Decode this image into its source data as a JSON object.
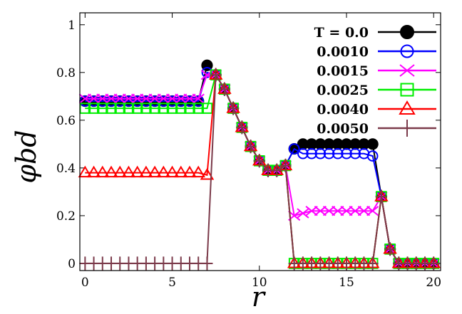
{
  "chart_data": {
    "type": "line",
    "xlabel": "r",
    "ylabel": "φbd",
    "xlim": [
      -0.3,
      20.4
    ],
    "ylim": [
      -0.03,
      1.05
    ],
    "xticks": [
      0,
      5,
      10,
      15,
      20
    ],
    "yticks": [
      0,
      0.2,
      0.4,
      0.6,
      0.8,
      1
    ],
    "ytick_labels": [
      "0",
      "0.2",
      "0.4",
      "0.6",
      "0.8",
      "1"
    ],
    "legend_position": "top-right",
    "series": [
      {
        "name": "T = 0.0",
        "color": "#000000",
        "marker": "filled-circle",
        "x": [
          0,
          0.5,
          1,
          1.5,
          2,
          2.5,
          3,
          3.5,
          4,
          4.5,
          5,
          5.5,
          6,
          6.5,
          7,
          7.5,
          8,
          8.5,
          9,
          9.5,
          10,
          10.5,
          11,
          11.5,
          12,
          12.5,
          13,
          13.5,
          14,
          14.5,
          15,
          15.5,
          16,
          16.5,
          17,
          17.5,
          18,
          18.5,
          19,
          19.5,
          20
        ],
        "y": [
          0.68,
          0.68,
          0.68,
          0.68,
          0.68,
          0.68,
          0.68,
          0.68,
          0.68,
          0.68,
          0.68,
          0.68,
          0.68,
          0.68,
          0.83,
          0.79,
          0.73,
          0.65,
          0.57,
          0.49,
          0.43,
          0.39,
          0.39,
          0.41,
          0.48,
          0.5,
          0.5,
          0.5,
          0.5,
          0.5,
          0.5,
          0.5,
          0.5,
          0.5,
          0.28,
          0.06,
          0,
          0,
          0,
          0,
          0
        ]
      },
      {
        "name": "0.0010",
        "color": "#0000ff",
        "marker": "open-circle",
        "x": [
          0,
          0.5,
          1,
          1.5,
          2,
          2.5,
          3,
          3.5,
          4,
          4.5,
          5,
          5.5,
          6,
          6.5,
          7,
          7.5,
          8,
          8.5,
          9,
          9.5,
          10,
          10.5,
          11,
          11.5,
          12,
          12.5,
          13,
          13.5,
          14,
          14.5,
          15,
          15.5,
          16,
          16.5,
          17,
          17.5,
          18,
          18.5,
          19,
          19.5,
          20
        ],
        "y": [
          0.68,
          0.68,
          0.68,
          0.68,
          0.68,
          0.68,
          0.68,
          0.68,
          0.68,
          0.68,
          0.68,
          0.68,
          0.68,
          0.68,
          0.8,
          0.79,
          0.73,
          0.65,
          0.57,
          0.49,
          0.43,
          0.39,
          0.39,
          0.41,
          0.48,
          0.46,
          0.46,
          0.46,
          0.46,
          0.46,
          0.46,
          0.46,
          0.46,
          0.45,
          0.28,
          0.06,
          0,
          0,
          0,
          0,
          0
        ]
      },
      {
        "name": "0.0015",
        "color": "#ff00ff",
        "marker": "x-cross",
        "x": [
          0,
          0.5,
          1,
          1.5,
          2,
          2.5,
          3,
          3.5,
          4,
          4.5,
          5,
          5.5,
          6,
          6.5,
          7,
          7.5,
          8,
          8.5,
          9,
          9.5,
          10,
          10.5,
          11,
          11.5,
          12,
          12.5,
          13,
          13.5,
          14,
          14.5,
          15,
          15.5,
          16,
          16.5,
          17,
          17.5,
          18,
          18.5,
          19,
          19.5,
          20
        ],
        "y": [
          0.69,
          0.69,
          0.69,
          0.69,
          0.69,
          0.69,
          0.69,
          0.69,
          0.69,
          0.69,
          0.69,
          0.69,
          0.69,
          0.69,
          0.79,
          0.79,
          0.73,
          0.65,
          0.57,
          0.49,
          0.43,
          0.39,
          0.39,
          0.41,
          0.2,
          0.21,
          0.22,
          0.22,
          0.22,
          0.22,
          0.22,
          0.22,
          0.22,
          0.22,
          0.28,
          0.06,
          0,
          0,
          0,
          0,
          0
        ]
      },
      {
        "name": "0.0025",
        "color": "#00ee00",
        "marker": "open-square",
        "x": [
          0,
          0.5,
          1,
          1.5,
          2,
          2.5,
          3,
          3.5,
          4,
          4.5,
          5,
          5.5,
          6,
          6.5,
          7,
          7.5,
          8,
          8.5,
          9,
          9.5,
          10,
          10.5,
          11,
          11.5,
          12,
          12.5,
          13,
          13.5,
          14,
          14.5,
          15,
          15.5,
          16,
          16.5,
          17,
          17.5,
          18,
          18.5,
          19,
          19.5,
          20
        ],
        "y": [
          0.65,
          0.65,
          0.65,
          0.65,
          0.65,
          0.65,
          0.65,
          0.65,
          0.65,
          0.65,
          0.65,
          0.65,
          0.65,
          0.65,
          0.65,
          0.79,
          0.73,
          0.65,
          0.57,
          0.49,
          0.43,
          0.39,
          0.39,
          0.41,
          0,
          0,
          0,
          0,
          0,
          0,
          0,
          0,
          0,
          0,
          0.28,
          0.06,
          0,
          0,
          0,
          0,
          0
        ]
      },
      {
        "name": "0.0040",
        "color": "#ff0000",
        "marker": "open-triangle",
        "x": [
          0,
          0.5,
          1,
          1.5,
          2,
          2.5,
          3,
          3.5,
          4,
          4.5,
          5,
          5.5,
          6,
          6.5,
          7,
          7.5,
          8,
          8.5,
          9,
          9.5,
          10,
          10.5,
          11,
          11.5,
          12,
          12.5,
          13,
          13.5,
          14,
          14.5,
          15,
          15.5,
          16,
          16.5,
          17,
          17.5,
          18,
          18.5,
          19,
          19.5,
          20
        ],
        "y": [
          0.38,
          0.38,
          0.38,
          0.38,
          0.38,
          0.38,
          0.38,
          0.38,
          0.38,
          0.38,
          0.38,
          0.38,
          0.38,
          0.38,
          0.37,
          0.79,
          0.73,
          0.65,
          0.57,
          0.49,
          0.43,
          0.39,
          0.39,
          0.41,
          0,
          0,
          0,
          0,
          0,
          0,
          0,
          0,
          0,
          0,
          0.28,
          0.06,
          0,
          0,
          0,
          0,
          0
        ]
      },
      {
        "name": "0.0050",
        "color": "#7b3a4a",
        "marker": "plus",
        "x": [
          0,
          0.5,
          1,
          1.5,
          2,
          2.5,
          3,
          3.5,
          4,
          4.5,
          5,
          5.5,
          6,
          6.5,
          7,
          7.5,
          8,
          8.5,
          9,
          9.5,
          10,
          10.5,
          11,
          11.5,
          12,
          12.5,
          13,
          13.5,
          14,
          14.5,
          15,
          15.5,
          16,
          16.5,
          17,
          17.5,
          18,
          18.5,
          19,
          19.5,
          20
        ],
        "y": [
          0,
          0,
          0,
          0,
          0,
          0,
          0,
          0,
          0,
          0,
          0,
          0,
          0,
          0,
          0,
          0.79,
          0.73,
          0.65,
          0.57,
          0.49,
          0.43,
          0.39,
          0.39,
          0.41,
          0,
          0,
          0,
          0,
          0,
          0,
          0,
          0,
          0,
          0,
          0.28,
          0.06,
          0,
          0,
          0,
          0,
          0
        ]
      }
    ]
  }
}
